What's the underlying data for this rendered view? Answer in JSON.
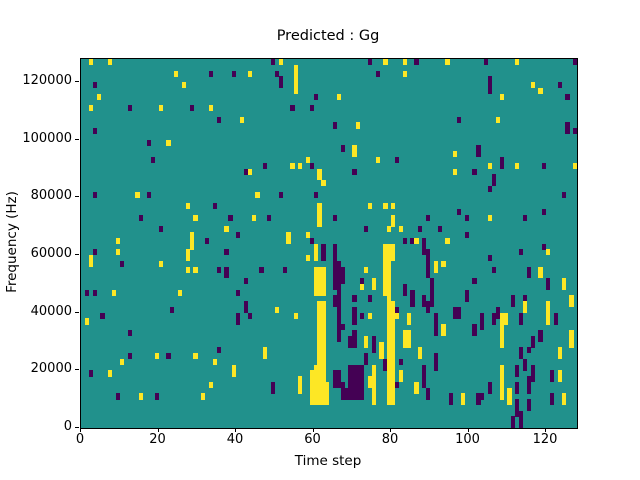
{
  "chart_data": {
    "type": "heatmap",
    "title": "Predicted : Gg",
    "xlabel": "Time step",
    "ylabel": "Frequency (Hz)",
    "xlim": [
      0,
      128
    ],
    "ylim": [
      0,
      128000
    ],
    "x_ticks": [
      0,
      20,
      40,
      60,
      80,
      100,
      120
    ],
    "y_ticks": [
      0,
      20000,
      40000,
      60000,
      80000,
      100000,
      120000
    ],
    "grid_cols": 128,
    "grid_rows": 64,
    "bin_hz": 2000,
    "colormap": "viridis",
    "legend": "none",
    "grid": "off",
    "colors": {
      "mid_teal": "#21918c",
      "high_yellow": "#fde725",
      "low_purple": "#440154",
      "spine": "#000000"
    },
    "cells_format": "[time_step, freq_bin_bottom, bin_span_up, color(y=yellow,p=purple)] on teal background",
    "cells": [
      [
        2,
        63,
        1,
        "y"
      ],
      [
        7,
        63,
        1,
        "y"
      ],
      [
        3,
        59,
        1,
        "p"
      ],
      [
        4,
        57,
        1,
        "y"
      ],
      [
        2,
        55,
        1,
        "y"
      ],
      [
        3,
        51,
        1,
        "p"
      ],
      [
        12,
        55,
        1,
        "p"
      ],
      [
        20,
        55,
        1,
        "y"
      ],
      [
        17,
        49,
        1,
        "p"
      ],
      [
        22,
        49,
        1,
        "y"
      ],
      [
        18,
        46,
        1,
        "p"
      ],
      [
        24,
        61,
        1,
        "y"
      ],
      [
        26,
        59,
        1,
        "y"
      ],
      [
        28,
        55,
        1,
        "p"
      ],
      [
        33,
        61,
        1,
        "p"
      ],
      [
        33,
        55,
        1,
        "y"
      ],
      [
        35,
        53,
        1,
        "p"
      ],
      [
        39,
        61,
        1,
        "p"
      ],
      [
        41,
        53,
        1,
        "y"
      ],
      [
        42,
        44,
        1,
        "p"
      ],
      [
        43,
        61,
        1,
        "y"
      ],
      [
        49,
        63,
        1,
        "p"
      ],
      [
        51,
        63,
        1,
        "y"
      ],
      [
        50,
        61,
        1,
        "p"
      ],
      [
        51,
        59,
        2,
        "p"
      ],
      [
        55,
        58,
        5,
        "y"
      ],
      [
        60,
        57,
        1,
        "p"
      ],
      [
        54,
        55,
        1,
        "p"
      ],
      [
        59,
        55,
        1,
        "p"
      ],
      [
        66,
        57,
        1,
        "y"
      ],
      [
        65,
        52,
        1,
        "p"
      ],
      [
        71,
        52,
        1,
        "y"
      ],
      [
        67,
        48,
        1,
        "p"
      ],
      [
        70,
        47,
        2,
        "y"
      ],
      [
        54,
        45,
        1,
        "y"
      ],
      [
        56,
        45,
        1,
        "y"
      ],
      [
        58,
        46,
        1,
        "y"
      ],
      [
        59,
        45,
        1,
        "p"
      ],
      [
        47,
        45,
        1,
        "p"
      ],
      [
        43,
        44,
        1,
        "y"
      ],
      [
        61,
        43,
        2,
        "y"
      ],
      [
        74,
        63,
        1,
        "p"
      ],
      [
        78,
        63,
        1,
        "y"
      ],
      [
        76,
        61,
        1,
        "p"
      ],
      [
        83,
        61,
        1,
        "y"
      ],
      [
        83,
        63,
        1,
        "y"
      ],
      [
        76,
        46,
        1,
        "y"
      ],
      [
        81,
        46,
        1,
        "p"
      ],
      [
        70,
        44,
        1,
        "p"
      ],
      [
        86,
        63,
        1,
        "p"
      ],
      [
        94,
        63,
        1,
        "y"
      ],
      [
        104,
        63,
        1,
        "p"
      ],
      [
        112,
        63,
        1,
        "y"
      ],
      [
        127,
        63,
        1,
        "p"
      ],
      [
        105,
        58,
        3,
        "p"
      ],
      [
        108,
        57,
        1,
        "y"
      ],
      [
        116,
        59,
        1,
        "y"
      ],
      [
        118,
        58,
        1,
        "y"
      ],
      [
        123,
        59,
        1,
        "p"
      ],
      [
        125,
        57,
        1,
        "p"
      ],
      [
        97,
        53,
        1,
        "p"
      ],
      [
        107,
        53,
        1,
        "y"
      ],
      [
        125,
        51,
        2,
        "p"
      ],
      [
        127,
        51,
        1,
        "p"
      ],
      [
        96,
        47,
        1,
        "y"
      ],
      [
        102,
        47,
        2,
        "p"
      ],
      [
        105,
        45,
        1,
        "y"
      ],
      [
        108,
        45,
        2,
        "p"
      ],
      [
        112,
        45,
        1,
        "y"
      ],
      [
        119,
        45,
        1,
        "p"
      ],
      [
        96,
        44,
        1,
        "y"
      ],
      [
        101,
        44,
        1,
        "p"
      ],
      [
        106,
        42,
        2,
        "p"
      ],
      [
        127,
        45,
        1,
        "y"
      ],
      [
        3,
        40,
        1,
        "p"
      ],
      [
        14,
        40,
        1,
        "y"
      ],
      [
        17,
        40,
        1,
        "p"
      ],
      [
        15,
        36,
        1,
        "p"
      ],
      [
        20,
        34,
        1,
        "p"
      ],
      [
        9,
        32,
        1,
        "y"
      ],
      [
        3,
        30,
        1,
        "p"
      ],
      [
        2,
        28,
        2,
        "y"
      ],
      [
        9,
        30,
        1,
        "y"
      ],
      [
        10,
        28,
        1,
        "p"
      ],
      [
        20,
        28,
        1,
        "y"
      ],
      [
        27,
        38,
        1,
        "y"
      ],
      [
        29,
        36,
        1,
        "y"
      ],
      [
        34,
        38,
        1,
        "p"
      ],
      [
        38,
        36,
        1,
        "p"
      ],
      [
        37,
        34,
        1,
        "y"
      ],
      [
        28,
        31,
        3,
        "y"
      ],
      [
        32,
        32,
        1,
        "p"
      ],
      [
        40,
        33,
        1,
        "p"
      ],
      [
        27,
        29,
        2,
        "y"
      ],
      [
        37,
        30,
        1,
        "p"
      ],
      [
        35,
        27,
        1,
        "p"
      ],
      [
        27,
        27,
        1,
        "y"
      ],
      [
        29,
        27,
        1,
        "y"
      ],
      [
        37,
        26,
        2,
        "p"
      ],
      [
        42,
        25,
        1,
        "p"
      ],
      [
        1,
        23,
        1,
        "p"
      ],
      [
        3,
        23,
        1,
        "p"
      ],
      [
        8,
        23,
        1,
        "y"
      ],
      [
        25,
        23,
        1,
        "y"
      ],
      [
        40,
        23,
        1,
        "p"
      ],
      [
        62,
        42,
        1,
        "y"
      ],
      [
        45,
        40,
        1,
        "y"
      ],
      [
        51,
        40,
        1,
        "p"
      ],
      [
        60,
        40,
        1,
        "p"
      ],
      [
        61,
        35,
        4,
        "y"
      ],
      [
        44,
        36,
        1,
        "y"
      ],
      [
        48,
        36,
        1,
        "p"
      ],
      [
        65,
        36,
        1,
        "p"
      ],
      [
        74,
        38,
        1,
        "y"
      ],
      [
        78,
        38,
        1,
        "y"
      ],
      [
        80,
        38,
        1,
        "y"
      ],
      [
        73,
        34,
        1,
        "p"
      ],
      [
        80,
        35,
        2,
        "y"
      ],
      [
        79,
        34,
        1,
        "y"
      ],
      [
        82,
        34,
        1,
        "y"
      ],
      [
        83,
        32,
        1,
        "p"
      ],
      [
        58,
        33,
        1,
        "y"
      ],
      [
        59,
        32,
        1,
        "p"
      ],
      [
        53,
        32,
        2,
        "y"
      ],
      [
        60,
        29,
        3,
        "y"
      ],
      [
        62,
        29,
        3,
        "p"
      ],
      [
        65,
        24,
        8,
        "p"
      ],
      [
        66,
        23,
        6,
        "p"
      ],
      [
        67,
        25,
        3,
        "p"
      ],
      [
        58,
        29,
        1,
        "y"
      ],
      [
        60,
        23,
        5,
        "y"
      ],
      [
        61,
        23,
        5,
        "y"
      ],
      [
        62,
        23,
        5,
        "y"
      ],
      [
        52,
        27,
        1,
        "p"
      ],
      [
        46,
        27,
        1,
        "p"
      ],
      [
        73,
        27,
        1,
        "y"
      ],
      [
        72,
        25,
        1,
        "p"
      ],
      [
        72,
        24,
        1,
        "y"
      ],
      [
        75,
        24,
        2,
        "y"
      ],
      [
        78,
        23,
        9,
        "y"
      ],
      [
        79,
        23,
        9,
        "y"
      ],
      [
        80,
        29,
        3,
        "y"
      ],
      [
        85,
        32,
        1,
        "p"
      ],
      [
        83,
        23,
        2,
        "p"
      ],
      [
        70,
        22,
        1,
        "p"
      ],
      [
        74,
        22,
        1,
        "p"
      ],
      [
        85,
        21,
        3,
        "p"
      ],
      [
        105,
        41,
        1,
        "p"
      ],
      [
        124,
        40,
        1,
        "p"
      ],
      [
        97,
        37,
        1,
        "p"
      ],
      [
        119,
        37,
        1,
        "p"
      ],
      [
        89,
        36,
        1,
        "p"
      ],
      [
        99,
        36,
        1,
        "p"
      ],
      [
        105,
        36,
        1,
        "y"
      ],
      [
        114,
        36,
        1,
        "p"
      ],
      [
        92,
        34,
        1,
        "p"
      ],
      [
        87,
        34,
        1,
        "p"
      ],
      [
        86,
        32,
        1,
        "y"
      ],
      [
        94,
        32,
        1,
        "y"
      ],
      [
        99,
        33,
        1,
        "p"
      ],
      [
        88,
        30,
        3,
        "p"
      ],
      [
        89,
        28,
        3,
        "p"
      ],
      [
        91,
        27,
        2,
        "y"
      ],
      [
        93,
        28,
        1,
        "y"
      ],
      [
        89,
        26,
        2,
        "p"
      ],
      [
        90,
        21,
        5,
        "p"
      ],
      [
        88,
        21,
        2,
        "p"
      ],
      [
        105,
        29,
        1,
        "p"
      ],
      [
        113,
        30,
        1,
        "p"
      ],
      [
        120,
        30,
        1,
        "y"
      ],
      [
        119,
        31,
        1,
        "p"
      ],
      [
        106,
        27,
        1,
        "p"
      ],
      [
        115,
        26,
        2,
        "p"
      ],
      [
        118,
        26,
        2,
        "y"
      ],
      [
        101,
        25,
        1,
        "p"
      ],
      [
        120,
        24,
        2,
        "p"
      ],
      [
        124,
        24,
        2,
        "y"
      ],
      [
        99,
        22,
        2,
        "p"
      ],
      [
        111,
        21,
        2,
        "p"
      ],
      [
        114,
        21,
        2,
        "p"
      ],
      [
        126,
        21,
        2,
        "y"
      ],
      [
        1,
        18,
        1,
        "y"
      ],
      [
        5,
        19,
        1,
        "p"
      ],
      [
        23,
        20,
        1,
        "p"
      ],
      [
        42,
        20,
        2,
        "p"
      ],
      [
        40,
        18,
        2,
        "p"
      ],
      [
        12,
        16,
        1,
        "p"
      ],
      [
        12,
        12,
        1,
        "p"
      ],
      [
        19,
        12,
        1,
        "y"
      ],
      [
        22,
        12,
        1,
        "p"
      ],
      [
        29,
        12,
        1,
        "y"
      ],
      [
        35,
        13,
        1,
        "p"
      ],
      [
        10,
        11,
        1,
        "y"
      ],
      [
        34,
        11,
        1,
        "y"
      ],
      [
        2,
        9,
        1,
        "p"
      ],
      [
        7,
        9,
        1,
        "y"
      ],
      [
        39,
        9,
        2,
        "y"
      ],
      [
        33,
        7,
        1,
        "y"
      ],
      [
        9,
        5,
        1,
        "p"
      ],
      [
        15,
        5,
        1,
        "y"
      ],
      [
        19,
        5,
        1,
        "p"
      ],
      [
        31,
        5,
        1,
        "y"
      ],
      [
        43,
        19,
        1,
        "p"
      ],
      [
        50,
        20,
        1,
        "y"
      ],
      [
        55,
        19,
        1,
        "y"
      ],
      [
        70,
        18,
        3,
        "p"
      ],
      [
        72,
        19,
        1,
        "p"
      ],
      [
        74,
        19,
        1,
        "y"
      ],
      [
        81,
        20,
        1,
        "p"
      ],
      [
        81,
        19,
        1,
        "y"
      ],
      [
        67,
        17,
        1,
        "p"
      ],
      [
        66,
        15,
        8,
        "p"
      ],
      [
        69,
        14,
        2,
        "p"
      ],
      [
        70,
        14,
        3,
        "p"
      ],
      [
        73,
        14,
        2,
        "y"
      ],
      [
        75,
        13,
        3,
        "p"
      ],
      [
        77,
        12,
        3,
        "y"
      ],
      [
        73,
        11,
        2,
        "p"
      ],
      [
        78,
        10,
        2,
        "p"
      ],
      [
        47,
        12,
        2,
        "y"
      ],
      [
        49,
        6,
        2,
        "p"
      ],
      [
        56,
        6,
        3,
        "y"
      ],
      [
        59,
        4,
        6,
        "y"
      ],
      [
        60,
        4,
        7,
        "y"
      ],
      [
        61,
        4,
        18,
        "y"
      ],
      [
        62,
        4,
        18,
        "y"
      ],
      [
        63,
        4,
        4,
        "y"
      ],
      [
        65,
        7,
        3,
        "p"
      ],
      [
        66,
        7,
        3,
        "p"
      ],
      [
        67,
        5,
        3,
        "p"
      ],
      [
        68,
        5,
        2,
        "p"
      ],
      [
        69,
        5,
        6,
        "p"
      ],
      [
        70,
        5,
        6,
        "p"
      ],
      [
        71,
        5,
        6,
        "p"
      ],
      [
        72,
        5,
        6,
        "p"
      ],
      [
        65,
        21,
        2,
        "p"
      ],
      [
        75,
        8,
        3,
        "y"
      ],
      [
        74,
        7,
        2,
        "y"
      ],
      [
        75,
        4,
        4,
        "y"
      ],
      [
        79,
        4,
        19,
        "y"
      ],
      [
        80,
        4,
        18,
        "y"
      ],
      [
        81,
        7,
        1,
        "p"
      ],
      [
        82,
        8,
        2,
        "y"
      ],
      [
        82,
        11,
        1,
        "p"
      ],
      [
        83,
        14,
        3,
        "y"
      ],
      [
        84,
        14,
        3,
        "y"
      ],
      [
        84,
        18,
        2,
        "y"
      ],
      [
        89,
        20,
        2,
        "p"
      ],
      [
        96,
        19,
        2,
        "p"
      ],
      [
        97,
        19,
        2,
        "p"
      ],
      [
        91,
        16,
        4,
        "p"
      ],
      [
        93,
        16,
        2,
        "y"
      ],
      [
        106,
        18,
        2,
        "p"
      ],
      [
        103,
        17,
        3,
        "p"
      ],
      [
        101,
        16,
        2,
        "p"
      ],
      [
        107,
        19,
        2,
        "p"
      ],
      [
        108,
        18,
        2,
        "y"
      ],
      [
        109,
        18,
        2,
        "y"
      ],
      [
        113,
        18,
        2,
        "p"
      ],
      [
        114,
        20,
        2,
        "y"
      ],
      [
        108,
        14,
        4,
        "y"
      ],
      [
        116,
        14,
        2,
        "p"
      ],
      [
        118,
        15,
        2,
        "p"
      ],
      [
        120,
        18,
        4,
        "y"
      ],
      [
        122,
        18,
        2,
        "p"
      ],
      [
        126,
        14,
        3,
        "y"
      ],
      [
        123,
        12,
        2,
        "y"
      ],
      [
        87,
        12,
        2,
        "y"
      ],
      [
        113,
        12,
        2,
        "p"
      ],
      [
        115,
        13,
        1,
        "p"
      ],
      [
        91,
        10,
        3,
        "p"
      ],
      [
        114,
        10,
        2,
        "p"
      ],
      [
        116,
        8,
        3,
        "p"
      ],
      [
        112,
        9,
        2,
        "p"
      ],
      [
        121,
        8,
        2,
        "p"
      ],
      [
        123,
        8,
        2,
        "y"
      ],
      [
        88,
        7,
        4,
        "p"
      ],
      [
        86,
        6,
        2,
        "y"
      ],
      [
        89,
        5,
        2,
        "p"
      ],
      [
        108,
        5,
        6,
        "y"
      ],
      [
        110,
        4,
        3,
        "y"
      ],
      [
        112,
        6,
        2,
        "p"
      ],
      [
        115,
        6,
        3,
        "p"
      ],
      [
        95,
        4,
        2,
        "p"
      ],
      [
        98,
        4,
        2,
        "y"
      ],
      [
        102,
        4,
        2,
        "p"
      ],
      [
        103,
        5,
        1,
        "p"
      ],
      [
        105,
        6,
        2,
        "p"
      ],
      [
        121,
        4,
        2,
        "p"
      ],
      [
        124,
        4,
        2,
        "y"
      ],
      [
        112,
        2,
        3,
        "p"
      ],
      [
        113,
        0,
        3,
        "p"
      ],
      [
        111,
        0,
        2,
        "p"
      ],
      [
        115,
        3,
        2,
        "p"
      ]
    ]
  }
}
